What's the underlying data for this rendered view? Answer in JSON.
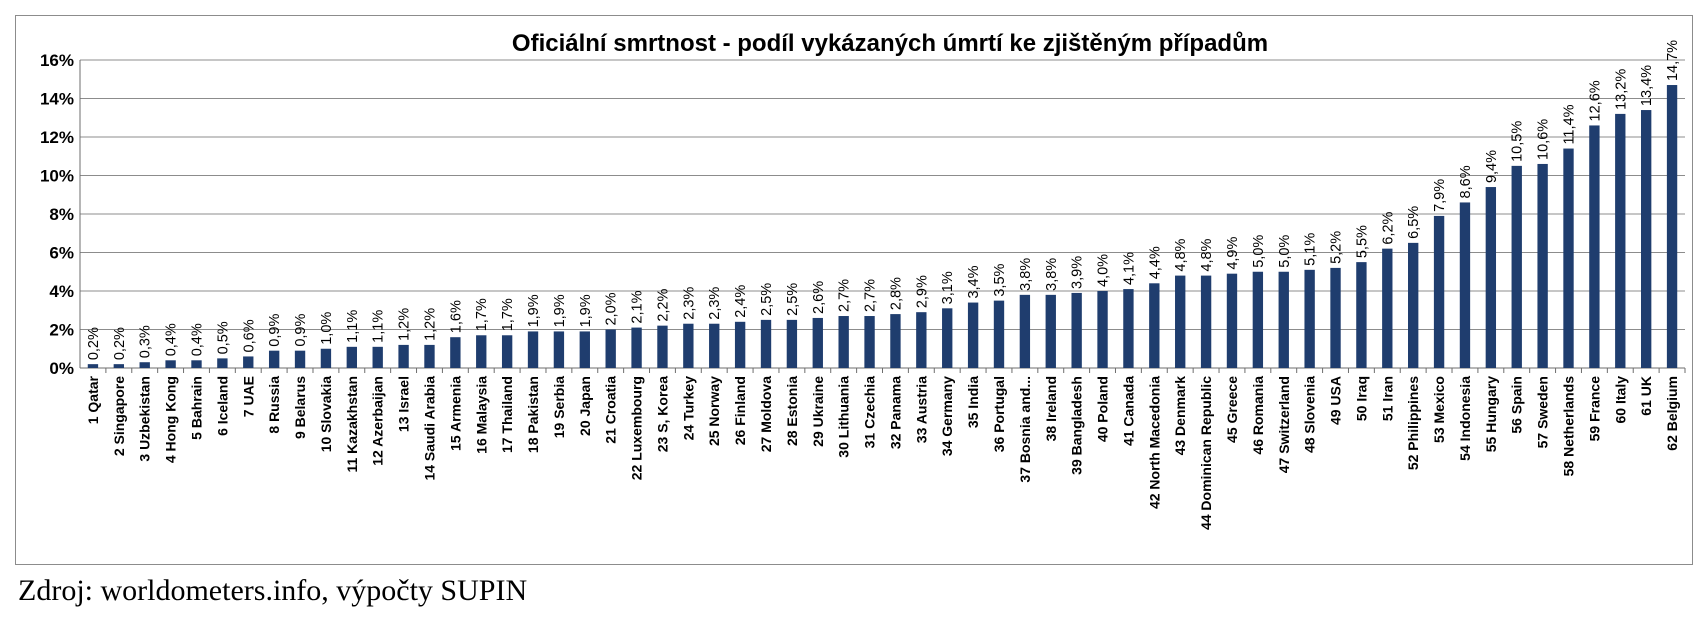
{
  "source_note": "Zdroj: worldometers.info, výpočty SUPIN",
  "colors": {
    "bar": "#1f3d6e",
    "grid": "#8c8c8c",
    "axis": "#6d6d6d"
  },
  "chart_data": {
    "type": "bar",
    "title": "Oficiální smrtnost - podíl vykázaných úmrtí ke zjištěným případům",
    "xlabel": "",
    "ylabel": "",
    "ylim": [
      0,
      16
    ],
    "yticks": [
      "0%",
      "2%",
      "4%",
      "6%",
      "8%",
      "10%",
      "12%",
      "14%",
      "16%"
    ],
    "grid": true,
    "legend": "none",
    "categories": [
      "1 Qatar",
      "2 Singapore",
      "3 Uzbekistan",
      "4 Hong Kong",
      "5 Bahrain",
      "6 Iceland",
      "7 UAE",
      "8 Russia",
      "9 Belarus",
      "10 Slovakia",
      "11 Kazakhstan",
      "12 Azerbaijan",
      "13 Israel",
      "14 Saudi Arabia",
      "15 Armenia",
      "16 Malaysia",
      "17 Thailand",
      "18 Pakistan",
      "19 Serbia",
      "20 Japan",
      "21 Croatia",
      "22 Luxembourg",
      "23 S, Korea",
      "24 Turkey",
      "25 Norway",
      "26 Finland",
      "27 Moldova",
      "28 Estonia",
      "29 Ukraine",
      "30 Lithuania",
      "31 Czechia",
      "32 Panama",
      "33 Austria",
      "34 Germany",
      "35 India",
      "36 Portugal",
      "37 Bosnia and...",
      "38 Ireland",
      "39 Bangladesh",
      "40 Poland",
      "41 Canada",
      "42 North Macedonia",
      "43 Denmark",
      "44 Dominican Republic",
      "45 Greece",
      "46 Romania",
      "47 Switzerland",
      "48 Slovenia",
      "49 USA",
      "50 Iraq",
      "51 Iran",
      "52 Philippines",
      "53 Mexico",
      "54 Indonesia",
      "55 Hungary",
      "56 Spain",
      "57 Sweden",
      "58 Netherlands",
      "59 France",
      "60 Italy",
      "61 UK",
      "62 Belgium"
    ],
    "values": [
      0.2,
      0.2,
      0.3,
      0.4,
      0.4,
      0.5,
      0.6,
      0.9,
      0.9,
      1.0,
      1.1,
      1.1,
      1.2,
      1.2,
      1.6,
      1.7,
      1.7,
      1.9,
      1.9,
      1.9,
      2.0,
      2.1,
      2.2,
      2.3,
      2.3,
      2.4,
      2.5,
      2.5,
      2.6,
      2.7,
      2.7,
      2.8,
      2.9,
      3.1,
      3.4,
      3.5,
      3.8,
      3.8,
      3.9,
      4.0,
      4.1,
      4.4,
      4.8,
      4.8,
      4.9,
      5.0,
      5.0,
      5.1,
      5.2,
      5.5,
      6.2,
      6.5,
      7.9,
      8.6,
      9.4,
      10.5,
      10.6,
      11.4,
      12.6,
      13.2,
      13.4,
      14.7
    ],
    "data_labels": [
      "0,2%",
      "0,2%",
      "0,3%",
      "0,4%",
      "0,4%",
      "0,5%",
      "0,6%",
      "0,9%",
      "0,9%",
      "1,0%",
      "1,1%",
      "1,1%",
      "1,2%",
      "1,2%",
      "1,6%",
      "1,7%",
      "1,7%",
      "1,9%",
      "1,9%",
      "1,9%",
      "2,0%",
      "2,1%",
      "2,2%",
      "2,3%",
      "2,3%",
      "2,4%",
      "2,5%",
      "2,5%",
      "2,6%",
      "2,7%",
      "2,7%",
      "2,8%",
      "2,9%",
      "3,1%",
      "3,4%",
      "3,5%",
      "3,8%",
      "3,8%",
      "3,9%",
      "4,0%",
      "4,1%",
      "4,4%",
      "4,8%",
      "4,8%",
      "4,9%",
      "5,0%",
      "5,0%",
      "5,1%",
      "5,2%",
      "5,5%",
      "6,2%",
      "6,5%",
      "7,9%",
      "8,6%",
      "9,4%",
      "10,5%",
      "10,6%",
      "11,4%",
      "12,6%",
      "13,2%",
      "13,4%",
      "14,7%"
    ]
  }
}
